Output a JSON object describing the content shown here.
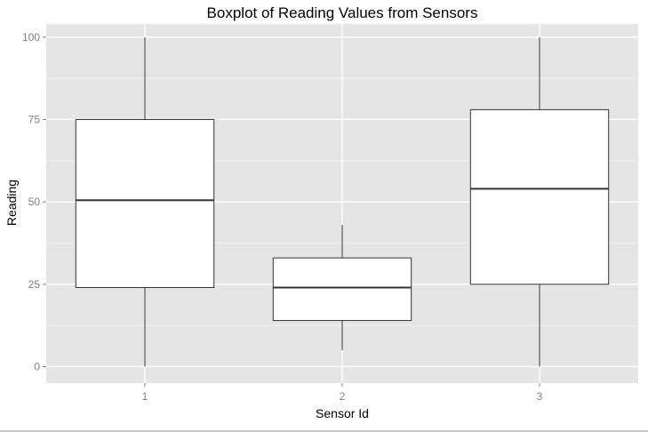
{
  "chart_data": {
    "type": "boxplot",
    "title": "Boxplot of Reading Values from Sensors",
    "xlabel": "Sensor Id",
    "ylabel": "Reading",
    "ylim": [
      -5,
      104
    ],
    "yticks": [
      0,
      25,
      50,
      75,
      100
    ],
    "grid": true,
    "categories": [
      "1",
      "2",
      "3"
    ],
    "boxes": [
      {
        "category": "1",
        "min": 0,
        "q1": 24,
        "median": 50.5,
        "q3": 75,
        "max": 100
      },
      {
        "category": "2",
        "min": 5,
        "q1": 14,
        "median": 24,
        "q3": 33,
        "max": 43
      },
      {
        "category": "3",
        "min": 0,
        "q1": 25,
        "median": 54,
        "q3": 78,
        "max": 100
      }
    ],
    "colors": {
      "panel": "#e5e5e5",
      "grid_major": "#ffffff",
      "grid_minor": "#f2f2f2",
      "box_fill": "#ffffff",
      "box_stroke": "#333333",
      "tick_text": "#7f7f7f"
    }
  }
}
